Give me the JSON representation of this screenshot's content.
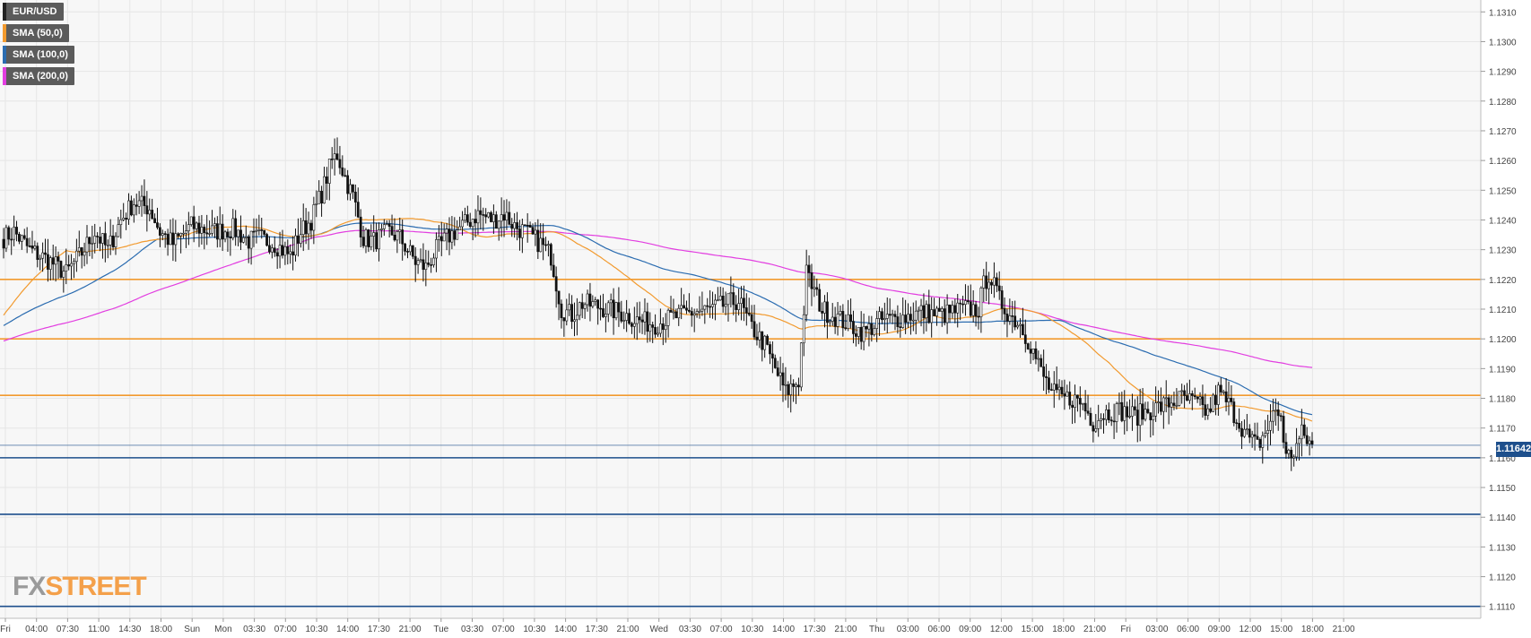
{
  "legend": [
    {
      "label": "EUR/USD",
      "color": "#222222"
    },
    {
      "label": "SMA (50,0)",
      "color": "#f29a2e"
    },
    {
      "label": "SMA (100,0)",
      "color": "#2b6cb0"
    },
    {
      "label": "SMA (200,0)",
      "color": "#e23ee0"
    }
  ],
  "logo": {
    "fx": "FX",
    "street": "STREET"
  },
  "last_price_label": "1.11642",
  "colors": {
    "background": "#f7f7f7",
    "grid": "#e6e6e6",
    "up_candle": "#ffffff",
    "down_candle": "#111111",
    "resistance": "#f29a2e",
    "support": "#1d4f8c",
    "sma50": "#f29a2e",
    "sma100": "#2b6cb0",
    "sma200": "#e23ee0"
  },
  "chart_data": {
    "type": "candlestick",
    "symbol": "EUR/USD",
    "ylim": [
      1.1106,
      1.1314
    ],
    "y_ticks": [
      "1.1310",
      "1.1300",
      "1.1290",
      "1.1280",
      "1.1270",
      "1.1260",
      "1.1250",
      "1.1240",
      "1.1230",
      "1.1220",
      "1.1210",
      "1.1200",
      "1.1190",
      "1.1180",
      "1.1170",
      "1.1160",
      "1.1150",
      "1.1140",
      "1.1130",
      "1.1120",
      "1.1110"
    ],
    "x_ticks": [
      "Fri",
      "04:00",
      "07:30",
      "11:00",
      "14:30",
      "18:00",
      "Sun",
      "Mon",
      "03:30",
      "07:00",
      "10:30",
      "14:00",
      "17:30",
      "21:00",
      "Tue",
      "03:30",
      "07:00",
      "10:30",
      "14:00",
      "17:30",
      "21:00",
      "Wed",
      "03:30",
      "07:00",
      "10:30",
      "14:00",
      "17:30",
      "21:00",
      "Thu",
      "03:00",
      "06:00",
      "09:00",
      "12:00",
      "15:00",
      "18:00",
      "21:00",
      "Fri",
      "03:00",
      "06:00",
      "09:00",
      "12:00",
      "15:00",
      "18:00",
      "21:00"
    ],
    "horizontal_levels": {
      "resistance": [
        1.122,
        1.12,
        1.1181
      ],
      "support": [
        1.116,
        1.1141,
        1.111
      ]
    },
    "last_price": 1.11642,
    "path_anchors": [
      [
        0,
        1.1234
      ],
      [
        4,
        1.1236
      ],
      [
        10,
        1.123
      ],
      [
        18,
        1.1226
      ],
      [
        24,
        1.1222
      ],
      [
        30,
        1.1229
      ],
      [
        35,
        1.1236
      ],
      [
        40,
        1.123
      ],
      [
        45,
        1.124
      ],
      [
        50,
        1.1246
      ],
      [
        56,
        1.1244
      ],
      [
        60,
        1.1236
      ],
      [
        65,
        1.1232
      ],
      [
        72,
        1.1238
      ],
      [
        80,
        1.1236
      ],
      [
        88,
        1.1237
      ],
      [
        94,
        1.1233
      ],
      [
        98,
        1.1234
      ],
      [
        104,
        1.1232
      ],
      [
        110,
        1.1228
      ],
      [
        114,
        1.1236
      ],
      [
        118,
        1.124
      ],
      [
        122,
        1.1249
      ],
      [
        126,
        1.126
      ],
      [
        128,
        1.1262
      ],
      [
        132,
        1.1252
      ],
      [
        134,
        1.1248
      ],
      [
        138,
        1.1234
      ],
      [
        142,
        1.1233
      ],
      [
        148,
        1.1236
      ],
      [
        152,
        1.1234
      ],
      [
        158,
        1.1226
      ],
      [
        162,
        1.1224
      ],
      [
        166,
        1.123
      ],
      [
        170,
        1.1234
      ],
      [
        176,
        1.1238
      ],
      [
        182,
        1.1242
      ],
      [
        188,
        1.124
      ],
      [
        192,
        1.1242
      ],
      [
        196,
        1.1238
      ],
      [
        200,
        1.1236
      ],
      [
        206,
        1.1232
      ],
      [
        210,
        1.1228
      ],
      [
        214,
        1.121
      ],
      [
        218,
        1.1208
      ],
      [
        222,
        1.1212
      ],
      [
        228,
        1.1211
      ],
      [
        236,
        1.1209
      ],
      [
        244,
        1.1206
      ],
      [
        250,
        1.1205
      ],
      [
        256,
        1.1207
      ],
      [
        264,
        1.1209
      ],
      [
        272,
        1.121
      ],
      [
        278,
        1.1212
      ],
      [
        282,
        1.1213
      ],
      [
        286,
        1.1205
      ],
      [
        292,
        1.1198
      ],
      [
        296,
        1.119
      ],
      [
        300,
        1.1182
      ],
      [
        305,
        1.1186
      ],
      [
        308,
        1.1222
      ],
      [
        310,
        1.1218
      ],
      [
        314,
        1.121
      ],
      [
        322,
        1.1206
      ],
      [
        330,
        1.1202
      ],
      [
        336,
        1.1206
      ],
      [
        344,
        1.1207
      ],
      [
        352,
        1.1209
      ],
      [
        360,
        1.1208
      ],
      [
        368,
        1.121
      ],
      [
        374,
        1.121
      ],
      [
        376,
        1.1218
      ],
      [
        378,
        1.1222
      ],
      [
        382,
        1.1213
      ],
      [
        386,
        1.1208
      ],
      [
        390,
        1.1205
      ],
      [
        394,
        1.1198
      ],
      [
        398,
        1.1189
      ],
      [
        402,
        1.1182
      ],
      [
        406,
        1.118
      ],
      [
        410,
        1.118
      ],
      [
        414,
        1.1178
      ],
      [
        418,
        1.1172
      ],
      [
        422,
        1.1175
      ],
      [
        428,
        1.1176
      ],
      [
        434,
        1.1174
      ],
      [
        440,
        1.1176
      ],
      [
        446,
        1.1178
      ],
      [
        452,
        1.118
      ],
      [
        458,
        1.1178
      ],
      [
        462,
        1.1175
      ],
      [
        466,
        1.1182
      ],
      [
        470,
        1.1178
      ],
      [
        474,
        1.1172
      ],
      [
        478,
        1.1166
      ],
      [
        481,
        1.1164
      ],
      [
        485,
        1.117
      ],
      [
        488,
        1.1176
      ],
      [
        490,
        1.1174
      ],
      [
        492,
        1.116
      ],
      [
        495,
        1.1162
      ],
      [
        498,
        1.1168
      ],
      [
        502,
        1.1164
      ]
    ]
  }
}
